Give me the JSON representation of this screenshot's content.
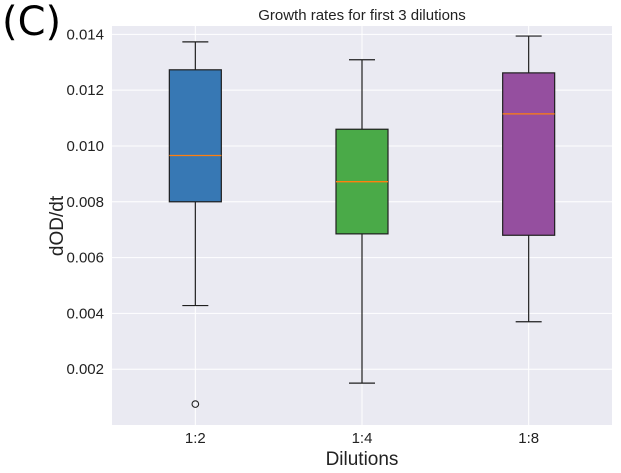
{
  "panel_label": "(C)",
  "colors": {
    "background": "#eaeaf2",
    "grid": "#ffffff",
    "whisker": "#1f1f1f",
    "median": "#ff7f0e"
  },
  "chart_data": {
    "type": "boxplot",
    "title": "Growth rates for first 3 dilutions",
    "xlabel": "Dilutions",
    "ylabel": "dOD/dt",
    "ylim": [
      0.0,
      0.0143
    ],
    "yticks": [
      0.002,
      0.004,
      0.006,
      0.008,
      0.01,
      0.012,
      0.014
    ],
    "ytick_labels": [
      "0.002",
      "0.004",
      "0.006",
      "0.008",
      "0.010",
      "0.012",
      "0.014"
    ],
    "grid": true,
    "categories": [
      "1:2",
      "1:4",
      "1:8"
    ],
    "boxes": [
      {
        "label": "1:2",
        "whisker_low": 0.00428,
        "q1": 0.008,
        "median": 0.00966,
        "q3": 0.01273,
        "whisker_high": 0.01373,
        "outliers": [
          0.00075
        ],
        "color": "#3778b4"
      },
      {
        "label": "1:4",
        "whisker_low": 0.0015,
        "q1": 0.00685,
        "median": 0.00872,
        "q3": 0.0106,
        "whisker_high": 0.01309,
        "outliers": [],
        "color": "#4aaa48"
      },
      {
        "label": "1:8",
        "whisker_low": 0.0037,
        "q1": 0.0068,
        "median": 0.01115,
        "q3": 0.01262,
        "whisker_high": 0.01394,
        "outliers": [],
        "color": "#954f9f"
      }
    ]
  }
}
